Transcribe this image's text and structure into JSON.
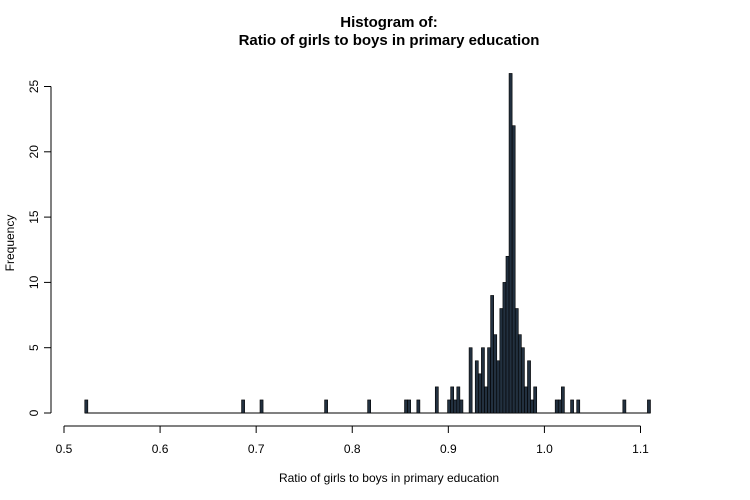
{
  "chart_data": {
    "type": "bar",
    "title_line1": "Histogram of:",
    "title_line2": "Ratio of girls to boys in primary education",
    "xlabel": "Ratio of girls to boys in primary education",
    "ylabel": "Frequency",
    "xlim": [
      0.5,
      1.1
    ],
    "ylim": [
      0,
      25
    ],
    "x_ticks": [
      "0.5",
      "0.6",
      "0.7",
      "0.8",
      "0.9",
      "1.0",
      "1.1"
    ],
    "y_ticks": [
      "0",
      "5",
      "10",
      "15",
      "20",
      "25"
    ],
    "bin_width": 0.0032,
    "bin_start": 0.5216,
    "bar_color": "#22303f",
    "baseline_color": "#000000",
    "counts": [
      1,
      0,
      0,
      0,
      0,
      0,
      0,
      0,
      0,
      0,
      0,
      0,
      0,
      0,
      0,
      0,
      0,
      0,
      0,
      0,
      0,
      0,
      0,
      0,
      0,
      0,
      0,
      0,
      0,
      0,
      0,
      0,
      0,
      0,
      0,
      0,
      0,
      0,
      0,
      0,
      0,
      0,
      0,
      0,
      0,
      0,
      0,
      0,
      0,
      0,
      0,
      1,
      0,
      0,
      0,
      0,
      0,
      1,
      0,
      0,
      0,
      0,
      0,
      0,
      0,
      0,
      0,
      0,
      0,
      0,
      0,
      0,
      0,
      0,
      0,
      0,
      0,
      0,
      1,
      0,
      0,
      0,
      0,
      0,
      0,
      0,
      0,
      0,
      0,
      0,
      0,
      0,
      1,
      0,
      0,
      0,
      0,
      0,
      0,
      0,
      0,
      0,
      0,
      0,
      1,
      1,
      0,
      0,
      1,
      0,
      0,
      0,
      0,
      0,
      2,
      0,
      0,
      0,
      1,
      2,
      1,
      2,
      1,
      0,
      0,
      5,
      0,
      4,
      3,
      5,
      2,
      5,
      9,
      6,
      4,
      8,
      10,
      12,
      26,
      22,
      8,
      6,
      5,
      2,
      4,
      1,
      2,
      0,
      0,
      0,
      0,
      0,
      0,
      1,
      1,
      2,
      0,
      0,
      1,
      0,
      1,
      0,
      0,
      0,
      0,
      0,
      0,
      0,
      0,
      0,
      0,
      0,
      0,
      0,
      0,
      1,
      0,
      0,
      0,
      0,
      0,
      0,
      0,
      1
    ]
  }
}
